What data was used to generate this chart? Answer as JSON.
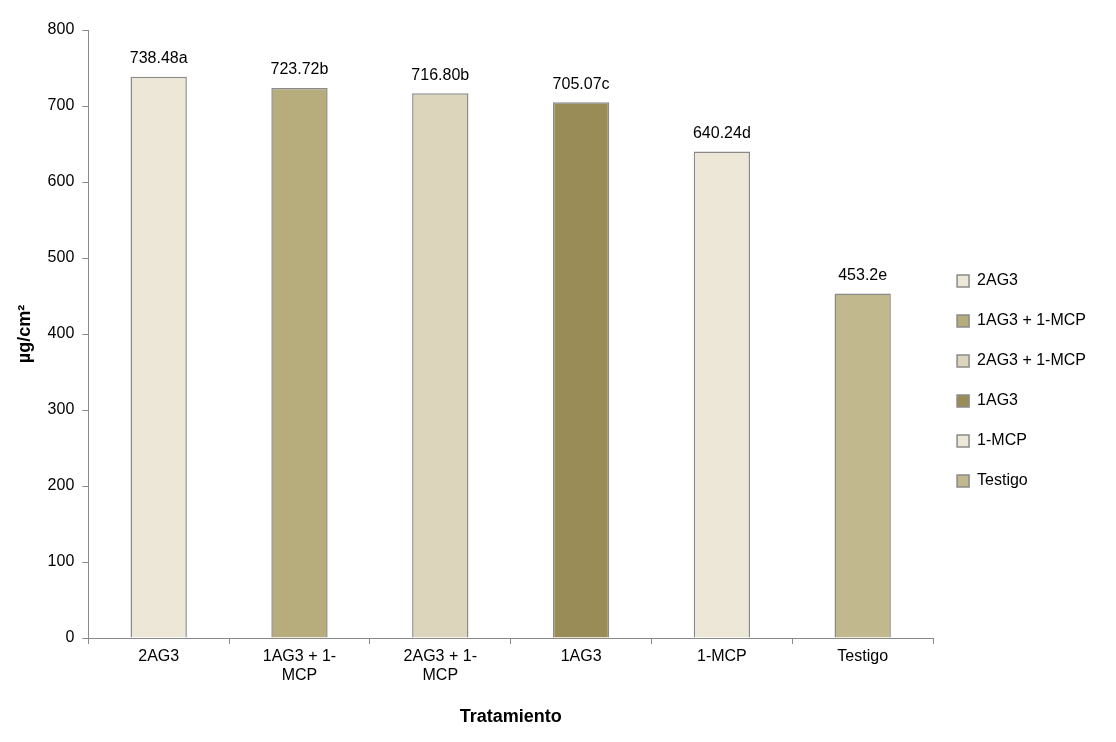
{
  "chart_data": {
    "type": "bar",
    "xlabel": "Tratamiento",
    "ylabel": "µg/cm²",
    "categories": [
      "2AG3",
      "1AG3 + 1-MCP",
      "2AG3 + 1-MCP",
      "1AG3",
      "1-MCP",
      "Testigo"
    ],
    "stacked": true,
    "series": [
      {
        "name": "2AG3",
        "color": "#ece7d6",
        "values": [
          738.48,
          null,
          null,
          null,
          null,
          null
        ],
        "value_labels": [
          "738.48a",
          null,
          null,
          null,
          null,
          null
        ]
      },
      {
        "name": "1AG3 + 1-MCP",
        "color": "#b7ac7c",
        "values": [
          null,
          723.72,
          null,
          null,
          null,
          null
        ],
        "value_labels": [
          null,
          "723.72b",
          null,
          null,
          null,
          null
        ]
      },
      {
        "name": "2AG3 + 1-MCP",
        "color": "#dcd5bb",
        "values": [
          null,
          null,
          716.8,
          null,
          null,
          null
        ],
        "value_labels": [
          null,
          null,
          "716.80b",
          null,
          null,
          null
        ]
      },
      {
        "name": "1AG3",
        "color": "#9a8c56",
        "values": [
          null,
          null,
          null,
          705.07,
          null,
          null
        ],
        "value_labels": [
          null,
          null,
          null,
          "705.07c",
          null,
          null
        ]
      },
      {
        "name": "1-MCP",
        "color": "#ece7d6",
        "values": [
          null,
          null,
          null,
          null,
          640.24,
          null
        ],
        "value_labels": [
          null,
          null,
          null,
          null,
          "640.24d",
          null
        ]
      },
      {
        "name": "Testigo",
        "color": "#c2b88e",
        "values": [
          null,
          null,
          null,
          null,
          null,
          453.2
        ],
        "value_labels": [
          null,
          null,
          null,
          null,
          null,
          "453.2e"
        ]
      }
    ],
    "ylim": [
      0,
      800
    ],
    "yticks": [
      0,
      100,
      200,
      300,
      400,
      500,
      600,
      700,
      800
    ],
    "grid": false,
    "legend": "right"
  }
}
